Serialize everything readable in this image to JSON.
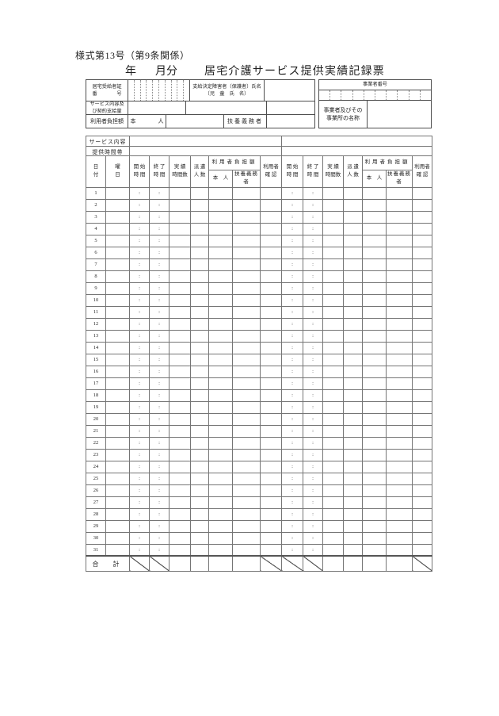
{
  "page": {
    "form_note": "様式第13号（第9条関係）",
    "year_label": "年",
    "month_label": "月分",
    "title": "居宅介護サービス提供実績記録票"
  },
  "header": {
    "recipient_cert_label": "居宅受給者証\n番　　　　号",
    "recipient_cert_digit_count": 10,
    "grantee_name_label": "支給決定障害者（保護者）氏名\n（児　童　氏　名）",
    "service_contract_label": "サービス内容及\nび契約支給量",
    "user_charge_label": "利用者負担額",
    "self_label": "本　　　　人",
    "dependent_label": "扶養義務者",
    "provider_number_label": "事業者番号",
    "provider_number_digit_count": 10,
    "provider_name_label": "事業者及びその\n事業所の名称"
  },
  "table": {
    "service_content_label": "サービス内容",
    "time_slot_label": "提供時間帯",
    "columns": {
      "date": "日\n付",
      "weekday": "曜\n日",
      "start_time": "開 始\n時 間",
      "end_time": "終 了\n時 間",
      "actual_hours": "実 績\n時間数",
      "staff_count": "派 遣\n人 数",
      "user_charge": "利用者負担額",
      "self": "本　人",
      "dependent": "扶養義務者",
      "user_confirm": "利用者\n確 認"
    },
    "days": [
      1,
      2,
      3,
      4,
      5,
      6,
      7,
      8,
      9,
      10,
      11,
      12,
      13,
      14,
      15,
      16,
      17,
      18,
      19,
      20,
      21,
      22,
      23,
      24,
      25,
      26,
      27,
      28,
      29,
      30,
      31
    ],
    "time_separator": ":",
    "total_label": "合　計"
  },
  "colors": {
    "border_outer": "#444444",
    "border_inner": "#757575",
    "text": "#1f1f1f",
    "background": "#ffffff"
  }
}
